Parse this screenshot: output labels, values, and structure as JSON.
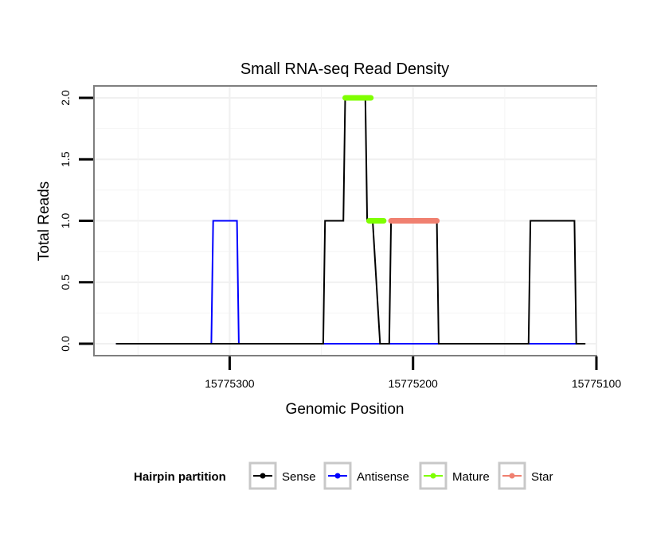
{
  "chart_data": {
    "type": "line",
    "title": "Small RNA-seq Read Density",
    "xlabel": "Genomic Position",
    "ylabel": "Total Reads",
    "x_reversed": true,
    "xlim": [
      15775374,
      15775100
    ],
    "ylim": [
      0,
      2
    ],
    "x_ticks": [
      15775300,
      15775200,
      15775100
    ],
    "x_tick_labels": [
      "15775300",
      "15775200",
      "15775100"
    ],
    "y_ticks": [
      0,
      0.5,
      1,
      1.5,
      2
    ],
    "y_tick_labels": [
      "0.0",
      "0.5",
      "1.0",
      "1.5",
      "2.0"
    ],
    "grid": true,
    "legend": {
      "title": "Hairpin partition",
      "position": "bottom",
      "entries": [
        {
          "name": "Sense",
          "color": "#000000"
        },
        {
          "name": "Antisense",
          "color": "#0000ff"
        },
        {
          "name": "Mature",
          "color": "#7fff00"
        },
        {
          "name": "Star",
          "color": "#f08070"
        }
      ]
    },
    "series": [
      {
        "name": "Sense",
        "color": "#000000",
        "points": [
          [
            15775362,
            0
          ],
          [
            15775249,
            0
          ],
          [
            15775248,
            1
          ],
          [
            15775238,
            1
          ],
          [
            15775237,
            2
          ],
          [
            15775226,
            2
          ],
          [
            15775225,
            1
          ],
          [
            15775222,
            1
          ],
          [
            15775218,
            0
          ],
          [
            15775213,
            0
          ],
          [
            15775212,
            1
          ],
          [
            15775187,
            1
          ],
          [
            15775186,
            0
          ],
          [
            15775137,
            0
          ],
          [
            15775136,
            1
          ],
          [
            15775112,
            1
          ],
          [
            15775111,
            0
          ],
          [
            15775106,
            0
          ]
        ]
      },
      {
        "name": "Antisense",
        "color": "#0000ff",
        "points": [
          [
            15775362,
            0
          ],
          [
            15775310,
            0
          ],
          [
            15775309,
            1
          ],
          [
            15775296,
            1
          ],
          [
            15775295,
            0
          ],
          [
            15775111,
            0
          ]
        ]
      },
      {
        "name": "Mature",
        "color": "#7fff00",
        "segments": [
          {
            "x": [
              15775237,
              15775223
            ],
            "y": 2
          },
          {
            "x": [
              15775224,
              15775216
            ],
            "y": 1
          }
        ]
      },
      {
        "name": "Star",
        "color": "#f08070",
        "segments": [
          {
            "x": [
              15775212,
              15775187
            ],
            "y": 1
          }
        ]
      }
    ]
  }
}
